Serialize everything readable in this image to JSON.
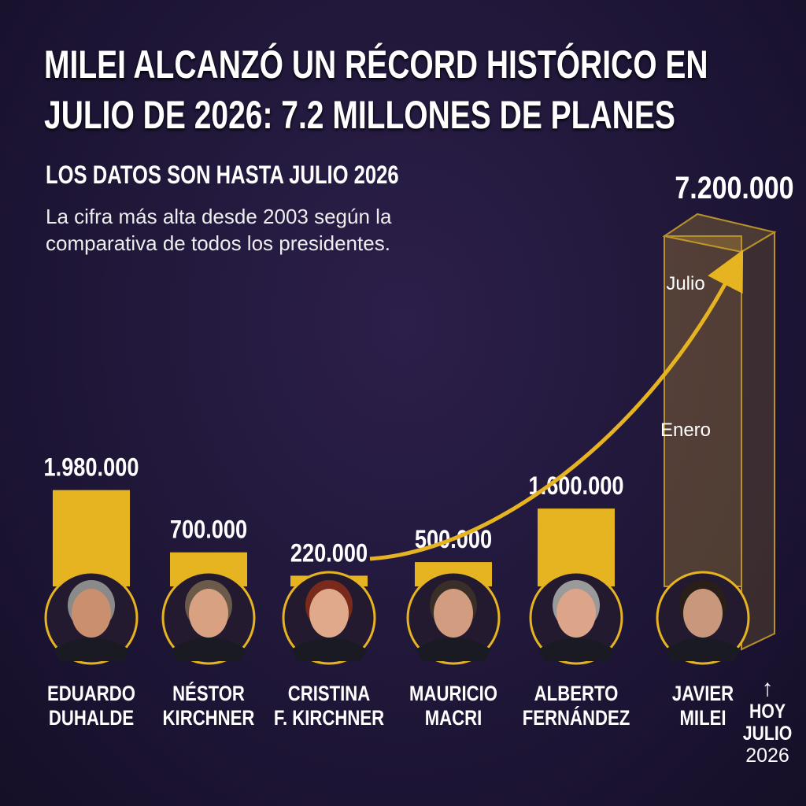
{
  "chart_data": {
    "type": "bar",
    "title": "MILEI ALCANZÓ UN RÉCORD HISTÓRICO EN JULIO DE 2026: 7.2 MILLONES DE PLANES",
    "subtitle": "LOS DATOS SON HASTA JULIO 2026",
    "note": "La cifra más alta desde 2003 según la comparativa de todos los presidentes.",
    "categories": [
      "EDUARDO\nDUHALDE",
      "NÉSTOR\nKIRCHNER",
      "CRISTINA\nF. KIRCHNER",
      "MAURICIO\nMACRI",
      "ALBERTO\nFERNÁNDEZ",
      "JAVIER\nMILEI"
    ],
    "values": [
      1980000,
      700000,
      220000,
      500000,
      1600000,
      7200000
    ],
    "value_labels": [
      "1.980.000",
      "700.000",
      "220.000",
      "500.000",
      "1.600.000",
      "7.200.000"
    ],
    "colors": [
      "#e6b421",
      "#e6b421",
      "#e6b421",
      "#e6b421",
      "#e6b421",
      "rgba(214,170,50,0.28)"
    ],
    "annotations": [
      "Julio",
      "Enero"
    ],
    "now_label": "HOY\nJULIO",
    "now_year": "2026"
  }
}
